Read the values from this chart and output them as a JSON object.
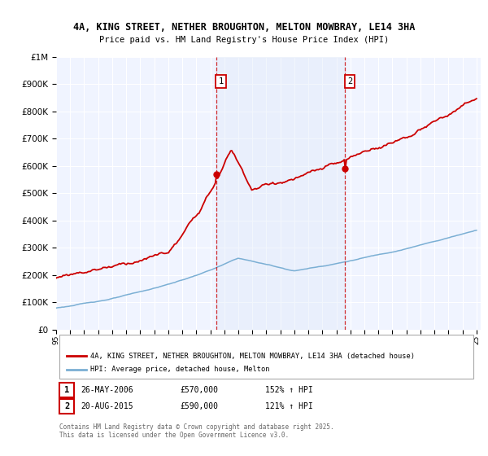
{
  "title1": "4A, KING STREET, NETHER BROUGHTON, MELTON MOWBRAY, LE14 3HA",
  "title2": "Price paid vs. HM Land Registry's House Price Index (HPI)",
  "background_color": "#ffffff",
  "plot_bg_color": "#f0f4ff",
  "shade_color": "#dce8f8",
  "legend_line1": "4A, KING STREET, NETHER BROUGHTON, MELTON MOWBRAY, LE14 3HA (detached house)",
  "legend_line2": "HPI: Average price, detached house, Melton",
  "red_color": "#cc0000",
  "blue_color": "#7bafd4",
  "marker1_date": "26-MAY-2006",
  "marker1_price": 570000,
  "marker1_hpi": "152% ↑ HPI",
  "marker2_date": "20-AUG-2015",
  "marker2_price": 590000,
  "marker2_hpi": "121% ↑ HPI",
  "footer": "Contains HM Land Registry data © Crown copyright and database right 2025.\nThis data is licensed under the Open Government Licence v3.0.",
  "ylim_max": 1000000,
  "year_start": 1995,
  "year_end": 2025,
  "t_sale1": 2006.42,
  "t_sale2": 2015.62
}
